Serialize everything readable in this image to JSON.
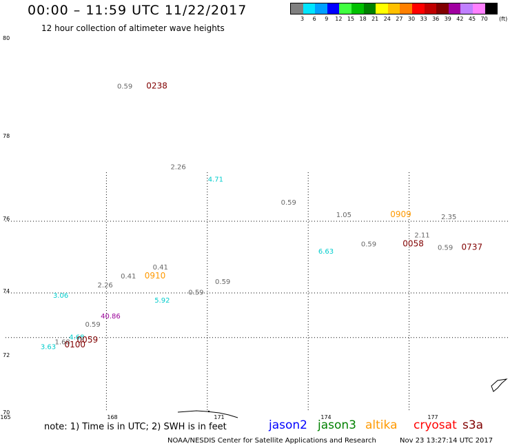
{
  "title": "00:00 – 11:59 UTC 11/22/2017",
  "subtitle": "12 hour collection of altimeter wave heights",
  "colorbar": {
    "unit_label": "(ft)",
    "colors": [
      "#808080",
      "#00e5ff",
      "#00a0ff",
      "#0000ff",
      "#40ff40",
      "#00c000",
      "#008000",
      "#ffff00",
      "#ffc000",
      "#ff8000",
      "#ff0000",
      "#c00000",
      "#800000",
      "#a000a0",
      "#c080ff",
      "#ff80ff",
      "#000000"
    ],
    "labels": [
      "3",
      "6",
      "9",
      "12",
      "15",
      "18",
      "21",
      "24",
      "27",
      "30",
      "33",
      "36",
      "39",
      "42",
      "45",
      "70"
    ]
  },
  "map": {
    "lon_labels": [
      "165",
      "168",
      "171",
      "174",
      "177"
    ],
    "lat_labels": [
      "80",
      "78",
      "76",
      "74",
      "72",
      "70"
    ],
    "colors": {
      "grid": "#000000",
      "gray": "#666666",
      "cyan": "#00cccc",
      "orange": "#ff9900",
      "darkred": "#800000",
      "purple": "#990099"
    }
  },
  "chart_data": {
    "type": "scatter",
    "title": "00:00 – 11:59 UTC 11/22/2017",
    "subtitle": "12 hour collection of altimeter wave heights",
    "xlabel": "",
    "ylabel": "",
    "xlim": [
      165,
      180
    ],
    "ylim": [
      70,
      80
    ],
    "x_ticks": [
      165,
      168,
      171,
      174,
      177
    ],
    "y_ticks": [
      70,
      72,
      74,
      76,
      78,
      80
    ],
    "grid": true,
    "points": [
      {
        "lon": 168.35,
        "lat": 79.0,
        "text": "0.59",
        "color": "gray"
      },
      {
        "lon": 169.25,
        "lat": 79.0,
        "text": "0238",
        "color": "darkred",
        "time": true
      },
      {
        "lon": 169.85,
        "lat": 77.25,
        "text": "2.26",
        "color": "gray"
      },
      {
        "lon": 170.9,
        "lat": 76.95,
        "text": "4.71",
        "color": "cyan"
      },
      {
        "lon": 172.95,
        "lat": 76.4,
        "text": "0.59",
        "color": "gray"
      },
      {
        "lon": 174.5,
        "lat": 76.1,
        "text": "1.05",
        "color": "gray"
      },
      {
        "lon": 176.1,
        "lat": 76.1,
        "text": "0909",
        "color": "orange",
        "time": true
      },
      {
        "lon": 177.45,
        "lat": 76.05,
        "text": "2.35",
        "color": "gray"
      },
      {
        "lon": 176.7,
        "lat": 75.55,
        "text": "2.11",
        "color": "gray"
      },
      {
        "lon": 175.2,
        "lat": 75.3,
        "text": "0.59",
        "color": "gray"
      },
      {
        "lon": 176.45,
        "lat": 75.3,
        "text": "0058",
        "color": "darkred",
        "time": true
      },
      {
        "lon": 174.0,
        "lat": 75.1,
        "text": "6.63",
        "color": "cyan"
      },
      {
        "lon": 177.35,
        "lat": 75.2,
        "text": "0.59",
        "color": "gray"
      },
      {
        "lon": 178.1,
        "lat": 75.2,
        "text": "0737",
        "color": "darkred",
        "time": true
      },
      {
        "lon": 169.35,
        "lat": 74.65,
        "text": "0.41",
        "color": "gray"
      },
      {
        "lon": 168.45,
        "lat": 74.4,
        "text": "0.41",
        "color": "gray"
      },
      {
        "lon": 169.2,
        "lat": 74.4,
        "text": "0910",
        "color": "orange",
        "time": true
      },
      {
        "lon": 167.8,
        "lat": 74.15,
        "text": "2.26",
        "color": "gray"
      },
      {
        "lon": 171.1,
        "lat": 74.25,
        "text": "0.59",
        "color": "gray"
      },
      {
        "lon": 170.35,
        "lat": 73.95,
        "text": "0.59",
        "color": "gray"
      },
      {
        "lon": 166.55,
        "lat": 73.85,
        "text": "3.06",
        "color": "cyan"
      },
      {
        "lon": 169.4,
        "lat": 73.7,
        "text": "5.92",
        "color": "cyan"
      },
      {
        "lon": 167.95,
        "lat": 73.2,
        "text": "40.86",
        "color": "purple"
      },
      {
        "lon": 167.45,
        "lat": 72.95,
        "text": "0.59",
        "color": "gray"
      },
      {
        "lon": 167.0,
        "lat": 72.55,
        "text": "4.68",
        "color": "cyan"
      },
      {
        "lon": 166.6,
        "lat": 72.4,
        "text": "1.68",
        "color": "gray"
      },
      {
        "lon": 167.3,
        "lat": 72.45,
        "text": "0059",
        "color": "darkred",
        "time": true
      },
      {
        "lon": 166.2,
        "lat": 72.25,
        "text": "3.63",
        "color": "cyan"
      },
      {
        "lon": 166.95,
        "lat": 72.3,
        "text": "0100",
        "color": "darkred",
        "time": true
      }
    ]
  },
  "footer": {
    "note": "note: 1) Time is in UTC; 2) SWH is in feet",
    "legend": [
      {
        "name": "jason2",
        "color": "#0000ff"
      },
      {
        "name": "jason3",
        "color": "#008000"
      },
      {
        "name": "altika",
        "color": "#ff9900"
      },
      {
        "name": "cryosat",
        "color": "#ff0000"
      },
      {
        "name": "s3a",
        "color": "#800000"
      }
    ],
    "credit": "NOAA/NESDIS Center for Satellite Applications and Research",
    "timestamp": "Nov 23 13:27:14 UTC 2017"
  }
}
